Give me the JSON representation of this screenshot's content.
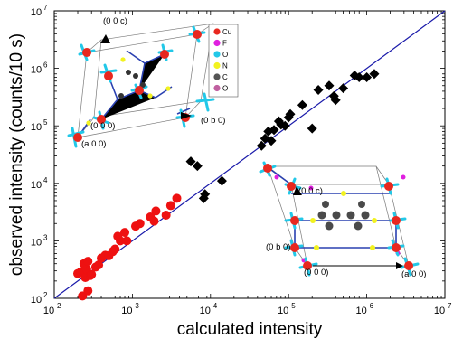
{
  "chart_data": {
    "type": "scatter",
    "xlabel": "calculated intensity",
    "ylabel": "observed intensity (counts/10 s)",
    "xscale": "log",
    "yscale": "log",
    "xlim": [
      100,
      10000000
    ],
    "ylim": [
      100,
      10000000
    ],
    "x_ticks": [
      {
        "base": "10",
        "exp": "2"
      },
      {
        "base": "10",
        "exp": "3"
      },
      {
        "base": "10",
        "exp": "4"
      },
      {
        "base": "10",
        "exp": "5"
      },
      {
        "base": "10",
        "exp": "6"
      },
      {
        "base": "10",
        "exp": "7"
      }
    ],
    "y_ticks": [
      {
        "base": "10",
        "exp": "2"
      },
      {
        "base": "10",
        "exp": "3"
      },
      {
        "base": "10",
        "exp": "4"
      },
      {
        "base": "10",
        "exp": "5"
      },
      {
        "base": "10",
        "exp": "6"
      },
      {
        "base": "10",
        "exp": "7"
      }
    ],
    "reference_line": {
      "type": "y=x",
      "color": "#1a1aaa"
    },
    "series": [
      {
        "marker": "circle",
        "color": "#ee1111",
        "points": [
          [
            230,
            110
          ],
          [
            270,
            135
          ],
          [
            200,
            270
          ],
          [
            220,
            290
          ],
          [
            240,
            300
          ],
          [
            260,
            320
          ],
          [
            250,
            230
          ],
          [
            290,
            250
          ],
          [
            240,
            400
          ],
          [
            270,
            440
          ],
          [
            300,
            260
          ],
          [
            340,
            350
          ],
          [
            370,
            380
          ],
          [
            400,
            500
          ],
          [
            450,
            560
          ],
          [
            500,
            550
          ],
          [
            560,
            650
          ],
          [
            600,
            720
          ],
          [
            700,
            1000
          ],
          [
            650,
            1200
          ],
          [
            800,
            1400
          ],
          [
            850,
            1000
          ],
          [
            1100,
            1800
          ],
          [
            1250,
            2000
          ],
          [
            1700,
            2600
          ],
          [
            1900,
            2200
          ],
          [
            2000,
            3300
          ],
          [
            2700,
            2800
          ],
          [
            3100,
            4100
          ],
          [
            3700,
            5500
          ]
        ]
      },
      {
        "marker": "diamond",
        "color": "#000000",
        "points": [
          [
            5600,
            24000
          ],
          [
            6800,
            20000
          ],
          [
            8200,
            5500
          ],
          [
            8500,
            6500
          ],
          [
            14000,
            11000
          ],
          [
            45000,
            45000
          ],
          [
            50000,
            60000
          ],
          [
            55000,
            80000
          ],
          [
            60000,
            55000
          ],
          [
            65000,
            85000
          ],
          [
            75000,
            120000
          ],
          [
            80000,
            105000
          ],
          [
            90000,
            100000
          ],
          [
            100000,
            140000
          ],
          [
            105000,
            160000
          ],
          [
            150000,
            230000
          ],
          [
            200000,
            90000
          ],
          [
            240000,
            420000
          ],
          [
            330000,
            500000
          ],
          [
            380000,
            330000
          ],
          [
            400000,
            280000
          ],
          [
            500000,
            450000
          ],
          [
            700000,
            750000
          ],
          [
            800000,
            700000
          ],
          [
            1000000,
            700000
          ],
          [
            1250000,
            800000
          ]
        ]
      }
    ],
    "insets": {
      "top_left": {
        "labels": [
          "(0 0 c)",
          "(0 0 0)",
          "(0 b 0)",
          "(a 0 0)"
        ],
        "legend": [
          {
            "label": "Cu",
            "color": "#e8281f"
          },
          {
            "label": "F",
            "color": "#e020e0"
          },
          {
            "label": "O",
            "color": "#22c8e8"
          },
          {
            "label": "N",
            "color": "#f2f220"
          },
          {
            "label": "C",
            "color": "#555555"
          },
          {
            "label": "O",
            "color": "#c060a0"
          }
        ]
      },
      "bottom_right": {
        "labels": [
          "(0 0 c)",
          "(0 b 0)",
          "(0 0 0)",
          "(a 0 0)"
        ]
      }
    }
  }
}
